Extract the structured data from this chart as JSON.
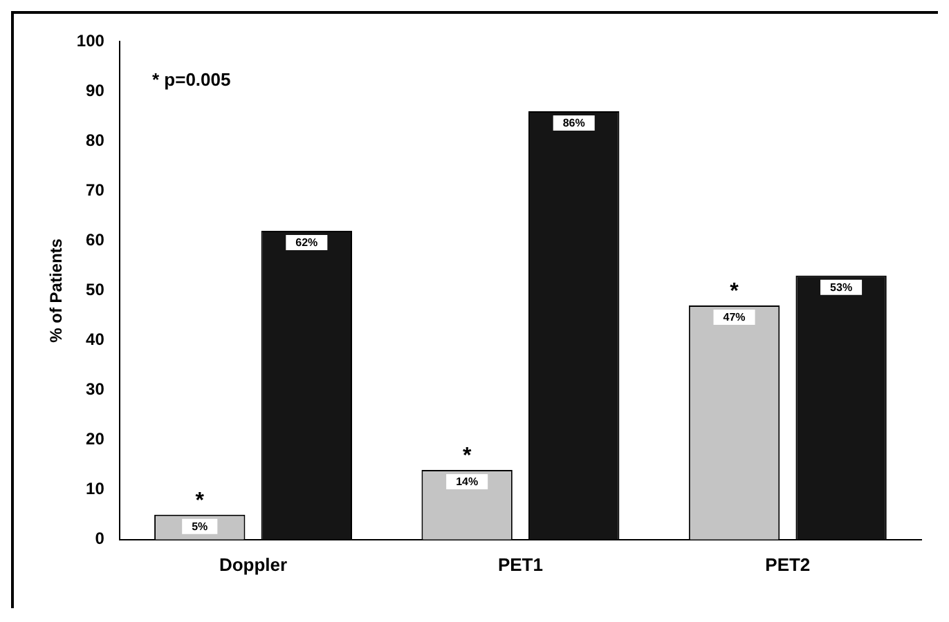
{
  "chart_data": {
    "type": "bar",
    "ylabel": "% of Patients",
    "categories": [
      "Doppler",
      "PET1",
      "PET2"
    ],
    "series": [
      {
        "color": "#c4c4c4",
        "values": [
          5,
          14,
          47
        ],
        "value_labels": [
          "5%",
          "14%",
          "47%"
        ]
      },
      {
        "color": "#151515",
        "values": [
          62,
          86,
          53
        ],
        "value_labels": [
          "62%",
          "86%",
          "53%"
        ]
      }
    ],
    "ylim": [
      0,
      100
    ],
    "yticks": [
      0,
      10,
      20,
      30,
      40,
      50,
      60,
      70,
      80,
      90,
      100
    ],
    "grid": false,
    "legend": false,
    "annotations": [
      "* p=0.005",
      "*",
      "*",
      "*"
    ]
  }
}
